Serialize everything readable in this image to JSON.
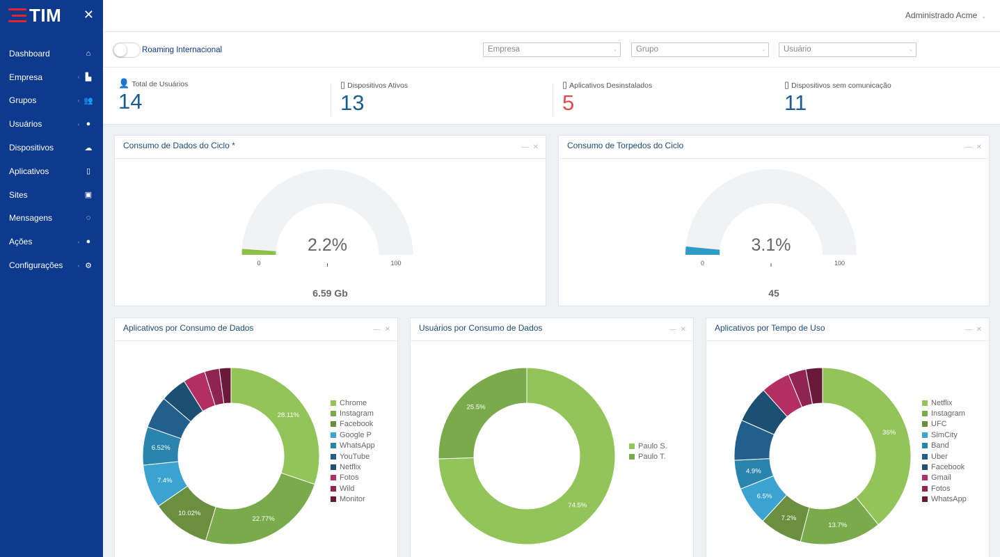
{
  "brand": {
    "name": "TIM"
  },
  "header": {
    "user_name": "Administrado Acme"
  },
  "sidebar": {
    "items": [
      {
        "label": "Dashboard",
        "icon": "home-icon",
        "glyph": "⌂",
        "chevron": false
      },
      {
        "label": "Empresa",
        "icon": "bar-chart-icon",
        "glyph": "▙",
        "chevron": true
      },
      {
        "label": "Grupos",
        "icon": "users-icon",
        "glyph": "👥",
        "chevron": true
      },
      {
        "label": "Usuários",
        "icon": "user-icon",
        "glyph": "●",
        "chevron": true
      },
      {
        "label": "Dispositivos",
        "icon": "cloud-icon",
        "glyph": "☁",
        "chevron": false
      },
      {
        "label": "Aplicativos",
        "icon": "mobile-icon",
        "glyph": "▯",
        "chevron": false
      },
      {
        "label": "Sites",
        "icon": "browser-icon",
        "glyph": "▣",
        "chevron": false
      },
      {
        "label": "Mensagens",
        "icon": "chat-icon",
        "glyph": "◌",
        "chevron": false
      },
      {
        "label": "Ações",
        "icon": "circle-icon",
        "glyph": "●",
        "chevron": true
      },
      {
        "label": "Configurações",
        "icon": "gear-icon",
        "glyph": "⚙",
        "chevron": true
      }
    ]
  },
  "filters": {
    "roaming_label": "Roaming Internacional",
    "empresa_placeholder": "Empresa",
    "grupo_placeholder": "Grupo",
    "usuario_placeholder": "Usuário"
  },
  "stats": [
    {
      "label": "Total de Usuários",
      "value": "14",
      "icon": "user-icon"
    },
    {
      "label": "Dispositivos Ativos",
      "value": "13",
      "icon": "mobile-icon"
    },
    {
      "label": "Aplicativos Desinstalados",
      "value": "5",
      "icon": "uninstall-icon"
    },
    {
      "label": "Dispositivos sem comunicação",
      "value": "11",
      "icon": "no-signal-icon"
    }
  ],
  "gauges": [
    {
      "title": "Consumo de Dados do Ciclo *",
      "percent_label": "2.2%",
      "percent": 2.2,
      "min": "0",
      "max": "100",
      "footer": "6.59 Gb",
      "color": "#8cc04b"
    },
    {
      "title": "Consumo de Torpedos do Ciclo",
      "percent_label": "3.1%",
      "percent": 3.1,
      "min": "0",
      "max": "100",
      "footer": "45",
      "color": "#2e9bc8"
    }
  ],
  "chart_data": [
    {
      "type": "pie",
      "title": "Aplicativos por Consumo de Dados",
      "categories": [
        "Chrome",
        "Instagram",
        "Facebook",
        "Google P",
        "WhatsApp",
        "YouTube",
        "Netflix",
        "Fotos",
        "Wild",
        "Monitor"
      ],
      "values": [
        28.11,
        22.77,
        10.02,
        7.4,
        6.52,
        5.5,
        4.5,
        3.8,
        2.5,
        2.0
      ],
      "data_labels": [
        "28.11%",
        "22.77%",
        "10.02%",
        "7.4%",
        "6.52%",
        "",
        "",
        "",
        "",
        ""
      ],
      "colors": [
        "#93c45a",
        "#79aa4c",
        "#6a8f3e",
        "#3aa3cf",
        "#2b84ad",
        "#225f8d",
        "#1d4f73",
        "#b32f63",
        "#8f2452",
        "#6a1a38"
      ]
    },
    {
      "type": "pie",
      "title": "Usuários por Consumo de Dados",
      "categories": [
        "Paulo S.",
        "Paulo T."
      ],
      "values": [
        74.5,
        25.5
      ],
      "data_labels": [
        "74.5%",
        "25.5%"
      ],
      "colors": [
        "#93c45a",
        "#79aa4c"
      ]
    },
    {
      "type": "pie",
      "title": "Aplicativos por Tempo de Uso",
      "categories": [
        "Netflix",
        "Instagram",
        "UFC",
        "SimCity",
        "Band",
        "Uber",
        "Facebook",
        "Gmail",
        "Fotos",
        "WhatsApp"
      ],
      "values": [
        36,
        13.7,
        7.2,
        6.5,
        4.9,
        6.8,
        6.2,
        4.9,
        3.0,
        2.8
      ],
      "data_labels": [
        "36%",
        "13.7%",
        "7.2%",
        "6.5%",
        "4.9%",
        "",
        "",
        "",
        "",
        ""
      ],
      "colors": [
        "#93c45a",
        "#79aa4c",
        "#6a8f3e",
        "#3aa3cf",
        "#2b84ad",
        "#225f8d",
        "#1d4f73",
        "#b32f63",
        "#8f2452",
        "#6a1a38"
      ]
    }
  ]
}
